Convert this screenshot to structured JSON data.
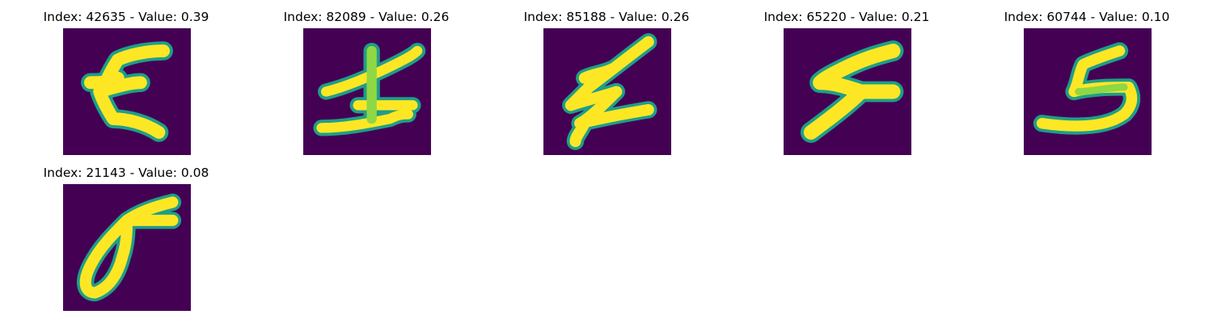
{
  "colors": {
    "background": "#440154",
    "stroke_core": "#fde725",
    "stroke_edge": "#1f9e89",
    "stroke_mid": "#6ccd5a"
  },
  "panels": [
    {
      "title": "Index: 42635 - Value: 0.39",
      "glyph": "E-like handwritten character"
    },
    {
      "title": "Index: 82089 - Value: 0.26",
      "glyph": "cross-like handwritten character"
    },
    {
      "title": "Index: 85188 - Value: 0.26",
      "glyph": "zig-zag handwritten character"
    },
    {
      "title": "Index: 65220 - Value: 0.21",
      "glyph": "S-like handwritten character"
    },
    {
      "title": "Index: 60744 - Value: 0.10",
      "glyph": "3-like handwritten character"
    },
    {
      "title": "Index: 21143 - Value: 0.08",
      "glyph": "σ-like handwritten character"
    }
  ]
}
